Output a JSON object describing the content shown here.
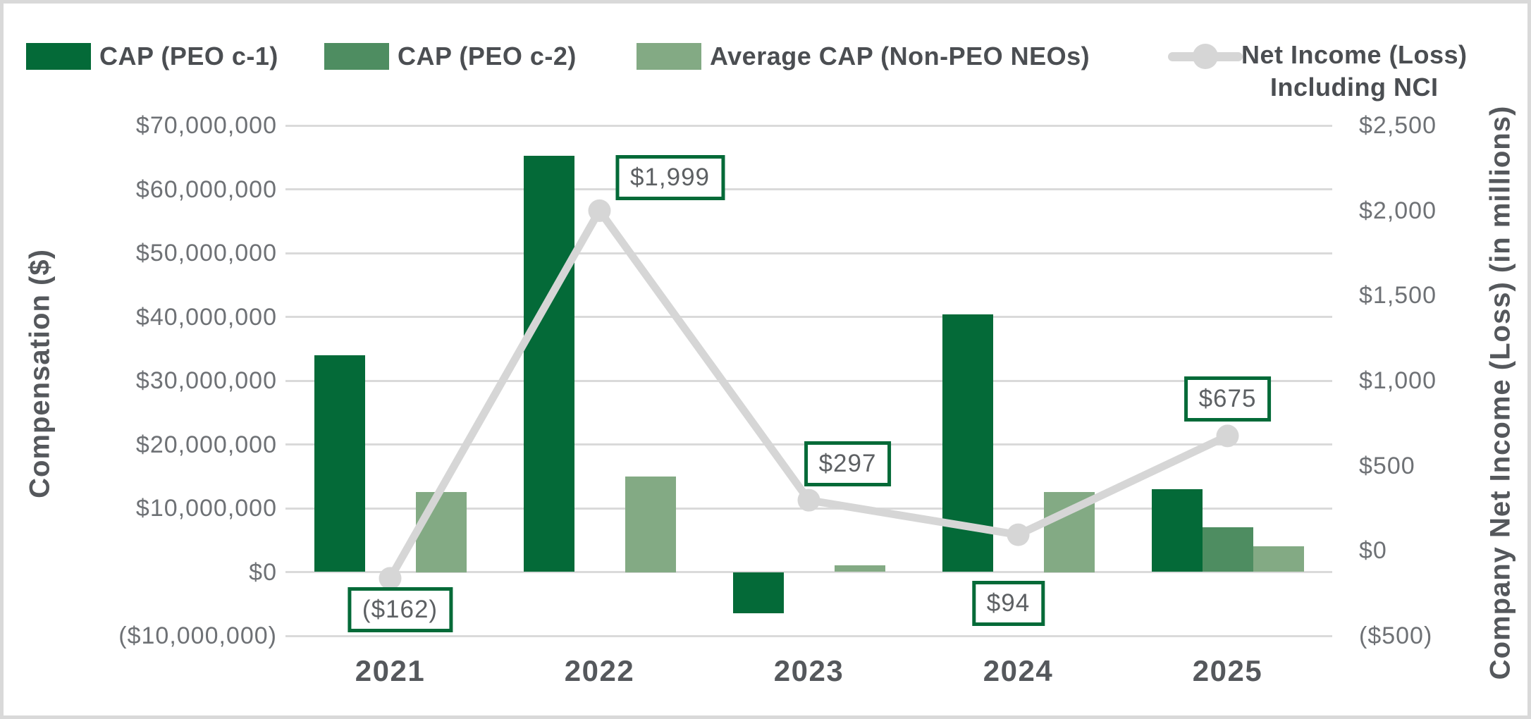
{
  "colors": {
    "peo_c1": "#046a38",
    "peo_c2": "#4e8d61",
    "non_peo": "#83aa84",
    "net_income_line": "#d6d6d6",
    "gridline": "#dadada",
    "tick_text": "#6e7175",
    "title_text": "#55585c",
    "label_box_border": "#046a38",
    "label_box_text": "#5d6063",
    "frame_border": "#d9d9d9"
  },
  "legend": {
    "items": [
      {
        "label": "CAP (PEO c-1)",
        "swatch": "bar",
        "color": "#046a38"
      },
      {
        "label": "CAP (PEO c-2)",
        "swatch": "bar",
        "color": "#4e8d61"
      },
      {
        "label": "Average CAP (Non-PEO NEOs)",
        "swatch": "bar",
        "color": "#83aa84"
      },
      {
        "label_line1": "Net Income (Loss)",
        "label_line2": "Including NCI",
        "swatch": "line-marker",
        "color": "#d6d6d6"
      }
    ]
  },
  "chart_data": {
    "type": "composed-bar-line",
    "categories": [
      "2021",
      "2022",
      "2023",
      "2024",
      "2025"
    ],
    "bar_series": [
      {
        "name": "CAP (PEO c-1)",
        "color": "#046a38",
        "values_usd": [
          34000000,
          65300000,
          -6500000,
          40400000,
          13000000
        ]
      },
      {
        "name": "CAP (PEO c-2)",
        "color": "#4e8d61",
        "values_usd": [
          null,
          null,
          null,
          null,
          7000000
        ]
      },
      {
        "name": "Average CAP (Non-PEO NEOs)",
        "color": "#83aa84",
        "values_usd": [
          12500000,
          15000000,
          1000000,
          12500000,
          4000000
        ]
      }
    ],
    "line_series": {
      "name": "Net Income (Loss) Including NCI",
      "color": "#d6d6d6",
      "axis": "right",
      "values_millions": [
        -162,
        1999,
        297,
        94,
        675
      ],
      "point_labels": [
        "($162)",
        "$1,999",
        "$297",
        "$94",
        "$675"
      ]
    },
    "left_axis": {
      "title": "Compensation ($)",
      "min": -10000000,
      "max": 70000000,
      "step": 10000000,
      "tick_labels": [
        "$70,000,000",
        "$60,000,000",
        "$50,000,000",
        "$40,000,000",
        "$30,000,000",
        "$20,000,000",
        "$10,000,000",
        "$0",
        "($10,000,000)"
      ]
    },
    "right_axis": {
      "title": "Company Net Income (Loss) (in millions)",
      "min": -500,
      "max": 2500,
      "step": 500,
      "tick_labels": [
        "$2,500",
        "$2,000",
        "$1,500",
        "$1,000",
        "$500",
        "$0",
        "($500)"
      ]
    },
    "grid": "horizontal",
    "legend_position": "top"
  }
}
